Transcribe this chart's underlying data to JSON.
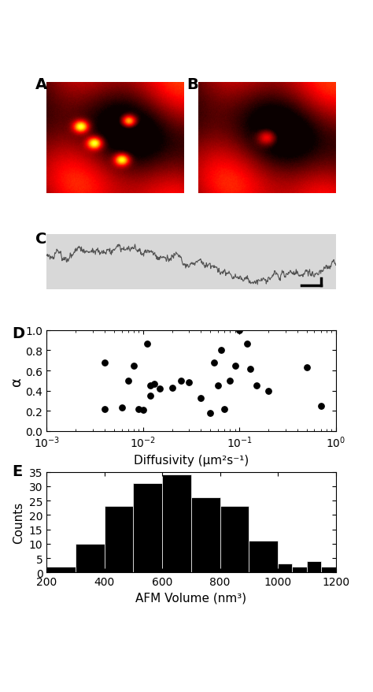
{
  "panel_labels": [
    "A",
    "B",
    "C",
    "D",
    "E"
  ],
  "scatter_x": [
    0.004,
    0.004,
    0.006,
    0.007,
    0.008,
    0.009,
    0.01,
    0.011,
    0.012,
    0.012,
    0.013,
    0.015,
    0.02,
    0.025,
    0.03,
    0.04,
    0.05,
    0.055,
    0.06,
    0.065,
    0.07,
    0.08,
    0.09,
    0.1,
    0.12,
    0.13,
    0.15,
    0.2,
    0.5,
    0.7
  ],
  "scatter_y": [
    0.68,
    0.22,
    0.23,
    0.5,
    0.65,
    0.22,
    0.21,
    0.87,
    0.35,
    0.45,
    0.47,
    0.42,
    0.43,
    0.5,
    0.48,
    0.33,
    0.18,
    0.68,
    0.45,
    0.8,
    0.22,
    0.5,
    0.65,
    1.0,
    0.87,
    0.62,
    0.45,
    0.4,
    0.63,
    0.25
  ],
  "hist_bins": [
    200,
    300,
    400,
    500,
    600,
    700,
    800,
    900,
    1000,
    1050,
    1100,
    1150,
    1200
  ],
  "hist_counts": [
    2,
    10,
    23,
    31,
    34,
    26,
    23,
    11,
    3,
    2,
    4,
    2
  ],
  "scatter_xlabel": "Diffusivity (μm²s⁻¹)",
  "scatter_ylabel": "α",
  "hist_xlabel": "AFM Volume (nm³)",
  "hist_ylabel": "Counts",
  "scatter_xlim": [
    0.001,
    1.0
  ],
  "scatter_ylim": [
    0,
    1
  ],
  "scatter_yticks": [
    0,
    0.2,
    0.4,
    0.6,
    0.8,
    1.0
  ],
  "hist_xlim": [
    200,
    1200
  ],
  "hist_ylim": [
    0,
    35
  ],
  "hist_yticks": [
    0,
    5,
    10,
    15,
    20,
    25,
    30,
    35
  ],
  "background_color": "#ffffff",
  "dot_color": "#000000",
  "bar_color": "#000000",
  "bar_edge_color": "#ffffff"
}
